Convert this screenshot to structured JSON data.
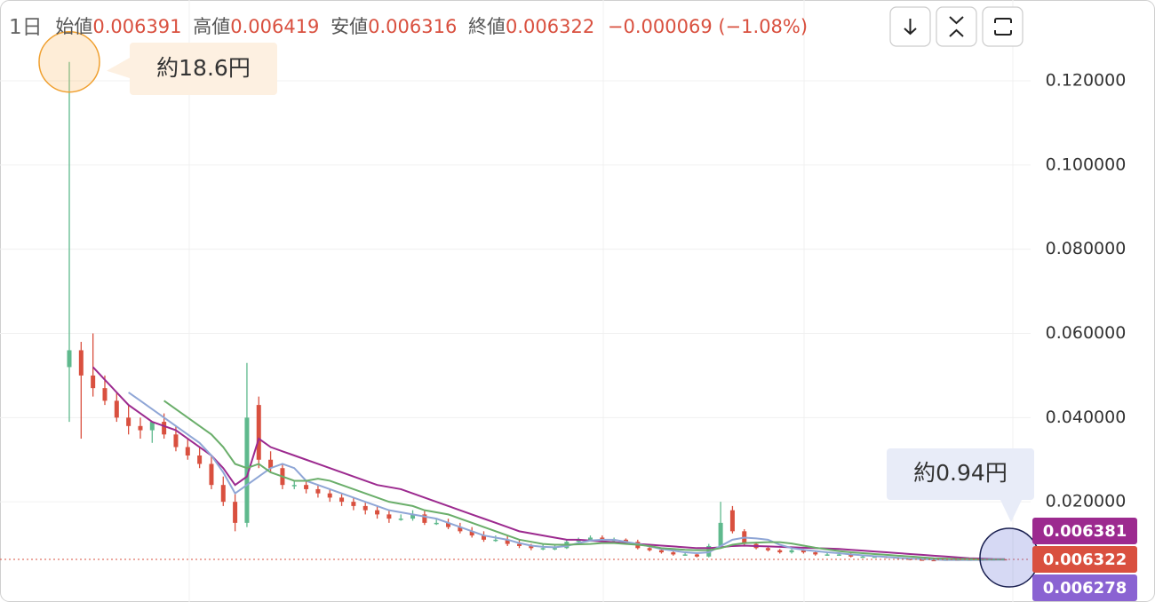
{
  "chart_data": {
    "type": "candlestick",
    "interval": "1日",
    "ohlc_labels": [
      "始値",
      "高値",
      "安値",
      "終値"
    ],
    "change_label": "−0.000069 (−1.08%)",
    "up_color": "#5fb98d",
    "down_color": "#d9503f",
    "categories": [
      null,
      null,
      null,
      null,
      null,
      null,
      null,
      null,
      null,
      null,
      null,
      null,
      null,
      null,
      null,
      null,
      null,
      null,
      null,
      null,
      null,
      null,
      null,
      null,
      null,
      null,
      null,
      null,
      null,
      null,
      null,
      null,
      null,
      null,
      null,
      null,
      null,
      null,
      null,
      null,
      null,
      null,
      null,
      null,
      null,
      null,
      null,
      null,
      null,
      null,
      null,
      null,
      null,
      null,
      null,
      null,
      null,
      null,
      null,
      null,
      null,
      null,
      null,
      null,
      null,
      null,
      null,
      null,
      null,
      null,
      null,
      null,
      null,
      null,
      null,
      null,
      null,
      null,
      null,
      null
    ],
    "open": [
      0.052,
      0.056,
      0.05,
      0.047,
      0.044,
      0.04,
      0.038,
      0.037,
      0.039,
      0.036,
      0.033,
      0.031,
      0.029,
      0.024,
      0.02,
      0.015,
      0.043,
      0.03,
      0.028,
      0.024,
      0.024,
      0.023,
      0.022,
      0.021,
      0.02,
      0.019,
      0.018,
      0.017,
      0.016,
      0.016,
      0.017,
      0.015,
      0.015,
      0.014,
      0.013,
      0.012,
      0.011,
      0.011,
      0.01,
      0.0095,
      0.009,
      0.009,
      0.009,
      0.0105,
      0.011,
      0.0115,
      0.011,
      0.011,
      0.0105,
      0.009,
      0.0085,
      0.008,
      0.0075,
      0.0075,
      0.007,
      0.0095,
      0.018,
      0.013,
      0.01,
      0.009,
      0.0085,
      0.008,
      0.0085,
      0.008,
      0.0075,
      0.0075,
      0.0075,
      0.007,
      0.007,
      0.007,
      0.0068,
      0.0065,
      0.0063,
      0.0062,
      0.0061,
      0.0063,
      0.0062,
      0.0063,
      0.0063,
      0.006391
    ],
    "high": [
      0.1245,
      0.058,
      0.06,
      0.05,
      0.046,
      0.043,
      0.04,
      0.038,
      0.041,
      0.038,
      0.035,
      0.033,
      0.031,
      0.026,
      0.022,
      0.053,
      0.045,
      0.032,
      0.029,
      0.025,
      0.025,
      0.024,
      0.023,
      0.022,
      0.021,
      0.02,
      0.019,
      0.018,
      0.017,
      0.018,
      0.018,
      0.016,
      0.016,
      0.015,
      0.014,
      0.013,
      0.012,
      0.012,
      0.011,
      0.01,
      0.0098,
      0.0096,
      0.011,
      0.0115,
      0.012,
      0.012,
      0.0115,
      0.0113,
      0.011,
      0.0093,
      0.0088,
      0.0083,
      0.0078,
      0.0078,
      0.01,
      0.02,
      0.019,
      0.0135,
      0.0105,
      0.0093,
      0.0088,
      0.0088,
      0.0088,
      0.0083,
      0.0078,
      0.0078,
      0.0078,
      0.0073,
      0.0072,
      0.0071,
      0.0069,
      0.0066,
      0.0064,
      0.0063,
      0.0064,
      0.0064,
      0.0064,
      0.0064,
      0.0065,
      0.006419
    ],
    "low": [
      0.039,
      0.035,
      0.045,
      0.043,
      0.039,
      0.036,
      0.035,
      0.034,
      0.035,
      0.032,
      0.03,
      0.028,
      0.023,
      0.019,
      0.013,
      0.014,
      0.028,
      0.027,
      0.023,
      0.023,
      0.022,
      0.021,
      0.02,
      0.019,
      0.018,
      0.017,
      0.016,
      0.015,
      0.0155,
      0.0155,
      0.0145,
      0.0145,
      0.0135,
      0.0125,
      0.0115,
      0.0105,
      0.0105,
      0.0095,
      0.009,
      0.0085,
      0.0085,
      0.0085,
      0.0088,
      0.0102,
      0.0107,
      0.0105,
      0.0105,
      0.0102,
      0.0087,
      0.0082,
      0.0077,
      0.0072,
      0.0072,
      0.0068,
      0.0068,
      0.0092,
      0.0125,
      0.0097,
      0.0087,
      0.0082,
      0.0077,
      0.0077,
      0.0077,
      0.0072,
      0.0072,
      0.0072,
      0.0068,
      0.0068,
      0.0068,
      0.0066,
      0.0063,
      0.0061,
      0.006,
      0.0059,
      0.006,
      0.006,
      0.0061,
      0.0061,
      0.0062,
      0.006316
    ],
    "close": [
      0.056,
      0.05,
      0.047,
      0.044,
      0.04,
      0.038,
      0.037,
      0.039,
      0.036,
      0.033,
      0.031,
      0.029,
      0.024,
      0.02,
      0.015,
      0.04,
      0.03,
      0.028,
      0.024,
      0.024,
      0.023,
      0.022,
      0.021,
      0.02,
      0.019,
      0.018,
      0.017,
      0.016,
      0.016,
      0.017,
      0.015,
      0.015,
      0.014,
      0.013,
      0.012,
      0.011,
      0.011,
      0.01,
      0.0095,
      0.009,
      0.009,
      0.009,
      0.0105,
      0.011,
      0.0115,
      0.011,
      0.011,
      0.0105,
      0.009,
      0.0085,
      0.008,
      0.0075,
      0.0075,
      0.007,
      0.0095,
      0.015,
      0.013,
      0.01,
      0.009,
      0.0085,
      0.008,
      0.0085,
      0.008,
      0.0075,
      0.0075,
      0.0075,
      0.007,
      0.007,
      0.007,
      0.0068,
      0.0065,
      0.0063,
      0.0062,
      0.0061,
      0.0063,
      0.0062,
      0.0063,
      0.0063,
      0.00639,
      0.006322
    ],
    "series": [
      {
        "color": "#9c2a8f",
        "values": [
          null,
          null,
          0.052,
          0.049,
          0.046,
          0.043,
          0.041,
          0.039,
          0.038,
          0.037,
          0.035,
          0.033,
          0.031,
          0.028,
          0.024,
          0.026,
          0.035,
          0.033,
          0.032,
          0.031,
          0.03,
          0.029,
          0.028,
          0.027,
          0.026,
          0.025,
          0.024,
          0.0235,
          0.023,
          0.022,
          0.021,
          0.02,
          0.019,
          0.018,
          0.017,
          0.016,
          0.015,
          0.014,
          0.013,
          0.0125,
          0.012,
          0.0115,
          0.011,
          0.011,
          0.0108,
          0.0106,
          0.0104,
          0.0102,
          0.01,
          0.0098,
          0.0096,
          0.0094,
          0.0092,
          0.009,
          0.009,
          0.0092,
          0.0095,
          0.0096,
          0.0095,
          0.0094,
          0.0093,
          0.0092,
          0.0091,
          0.009,
          0.0089,
          0.0088,
          0.0086,
          0.0084,
          0.0082,
          0.008,
          0.0078,
          0.0076,
          0.0074,
          0.0072,
          0.007,
          0.0068,
          0.0066,
          0.0065,
          0.0064,
          0.006381
        ]
      },
      {
        "color": "#8fa6d6",
        "values": [
          null,
          null,
          null,
          null,
          null,
          0.046,
          0.044,
          0.042,
          0.04,
          0.038,
          0.036,
          0.034,
          0.031,
          0.027,
          0.022,
          0.024,
          0.026,
          0.028,
          0.029,
          0.028,
          0.025,
          0.024,
          0.023,
          0.022,
          0.021,
          0.02,
          0.019,
          0.018,
          0.0175,
          0.017,
          0.0165,
          0.016,
          0.015,
          0.014,
          0.013,
          0.012,
          0.0115,
          0.011,
          0.0102,
          0.0096,
          0.0093,
          0.0092,
          0.0095,
          0.0102,
          0.0108,
          0.011,
          0.011,
          0.0105,
          0.01,
          0.0094,
          0.0088,
          0.0084,
          0.008,
          0.0078,
          0.008,
          0.0095,
          0.011,
          0.0115,
          0.0113,
          0.011,
          0.0098,
          0.009,
          0.0086,
          0.0083,
          0.008,
          0.0078,
          0.0075,
          0.0073,
          0.0071,
          0.0069,
          0.0067,
          0.0065,
          0.0064,
          0.0063,
          0.0062,
          0.0062,
          0.0062,
          0.0062,
          0.0063,
          0.006278
        ]
      },
      {
        "color": "#6aae6a",
        "values": [
          null,
          null,
          null,
          null,
          null,
          null,
          null,
          null,
          0.044,
          0.042,
          0.04,
          0.038,
          0.036,
          0.033,
          0.029,
          0.028,
          0.029,
          0.027,
          0.026,
          0.025,
          0.025,
          0.0255,
          0.025,
          0.024,
          0.023,
          0.022,
          0.021,
          0.02,
          0.0195,
          0.019,
          0.018,
          0.0175,
          0.017,
          0.016,
          0.015,
          0.014,
          0.013,
          0.012,
          0.011,
          0.0105,
          0.01,
          0.0098,
          0.0098,
          0.0099,
          0.01,
          0.0102,
          0.0102,
          0.01,
          0.0098,
          0.0095,
          0.009,
          0.0088,
          0.0086,
          0.0085,
          0.0085,
          0.009,
          0.0098,
          0.0102,
          0.0103,
          0.0104,
          0.0104,
          0.0101,
          0.0096,
          0.0091,
          0.0087,
          0.0083,
          0.008,
          0.0078,
          0.0076,
          0.0074,
          0.0072,
          0.007,
          0.0068,
          0.0066,
          0.0065,
          0.0064,
          0.0064,
          0.0063,
          0.0063,
          0.0063
        ]
      }
    ],
    "price_labels": [
      {
        "value": 0.006381,
        "color": "#9c2a8f"
      },
      {
        "value": 0.006322,
        "color": "#d9503f"
      },
      {
        "value": 0.006278,
        "color": "#8a63d2"
      }
    ],
    "annotations": [
      {
        "text": "約18.6円"
      },
      {
        "text": "約0.94円"
      }
    ],
    "ylim": [
      -0.0038,
      0.1392
    ],
    "yticks": [
      {
        "value": 0.02,
        "label": "0.020000"
      },
      {
        "value": 0.04,
        "label": "0.040000"
      },
      {
        "value": 0.06,
        "label": "0.060000"
      },
      {
        "value": 0.08,
        "label": "0.080000"
      },
      {
        "value": 0.1,
        "label": "0.100000"
      },
      {
        "value": 0.12,
        "label": "0.120000"
      }
    ],
    "grid": true
  }
}
